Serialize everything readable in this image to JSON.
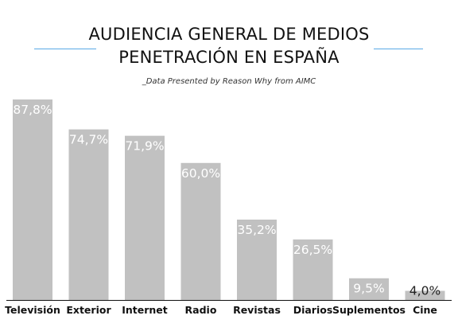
{
  "header": {
    "title_line1": "AUDIENCIA GENERAL DE MEDIOS",
    "title_line2": "PENETRACIÓN EN ESPAÑA",
    "subtitle": "_Data Presented by Reason Why from AIMC"
  },
  "colors": {
    "bar": "#c1c1c1",
    "accent_rule": "#5aa9e6",
    "axis": "#111111"
  },
  "chart_data": {
    "type": "bar",
    "title": "AUDIENCIA GENERAL DE MEDIOS PENETRACIÓN EN ESPAÑA",
    "subtitle": "_Data Presented by Reason Why from AIMC",
    "xlabel": "",
    "ylabel": "",
    "categories": [
      "Televisión",
      "Exterior",
      "Internet",
      "Radio",
      "Revistas",
      "Diarios",
      "Suplementos",
      "Cine"
    ],
    "values": [
      87.8,
      74.7,
      71.9,
      60.0,
      35.2,
      26.5,
      9.5,
      4.0
    ],
    "value_labels": [
      "87,8%",
      "74,7%",
      "71,9%",
      "60,0%",
      "35,2%",
      "26,5%",
      "9,5%",
      "4,0%"
    ],
    "ylim": [
      0,
      100
    ],
    "grid": false,
    "legend": "none"
  }
}
